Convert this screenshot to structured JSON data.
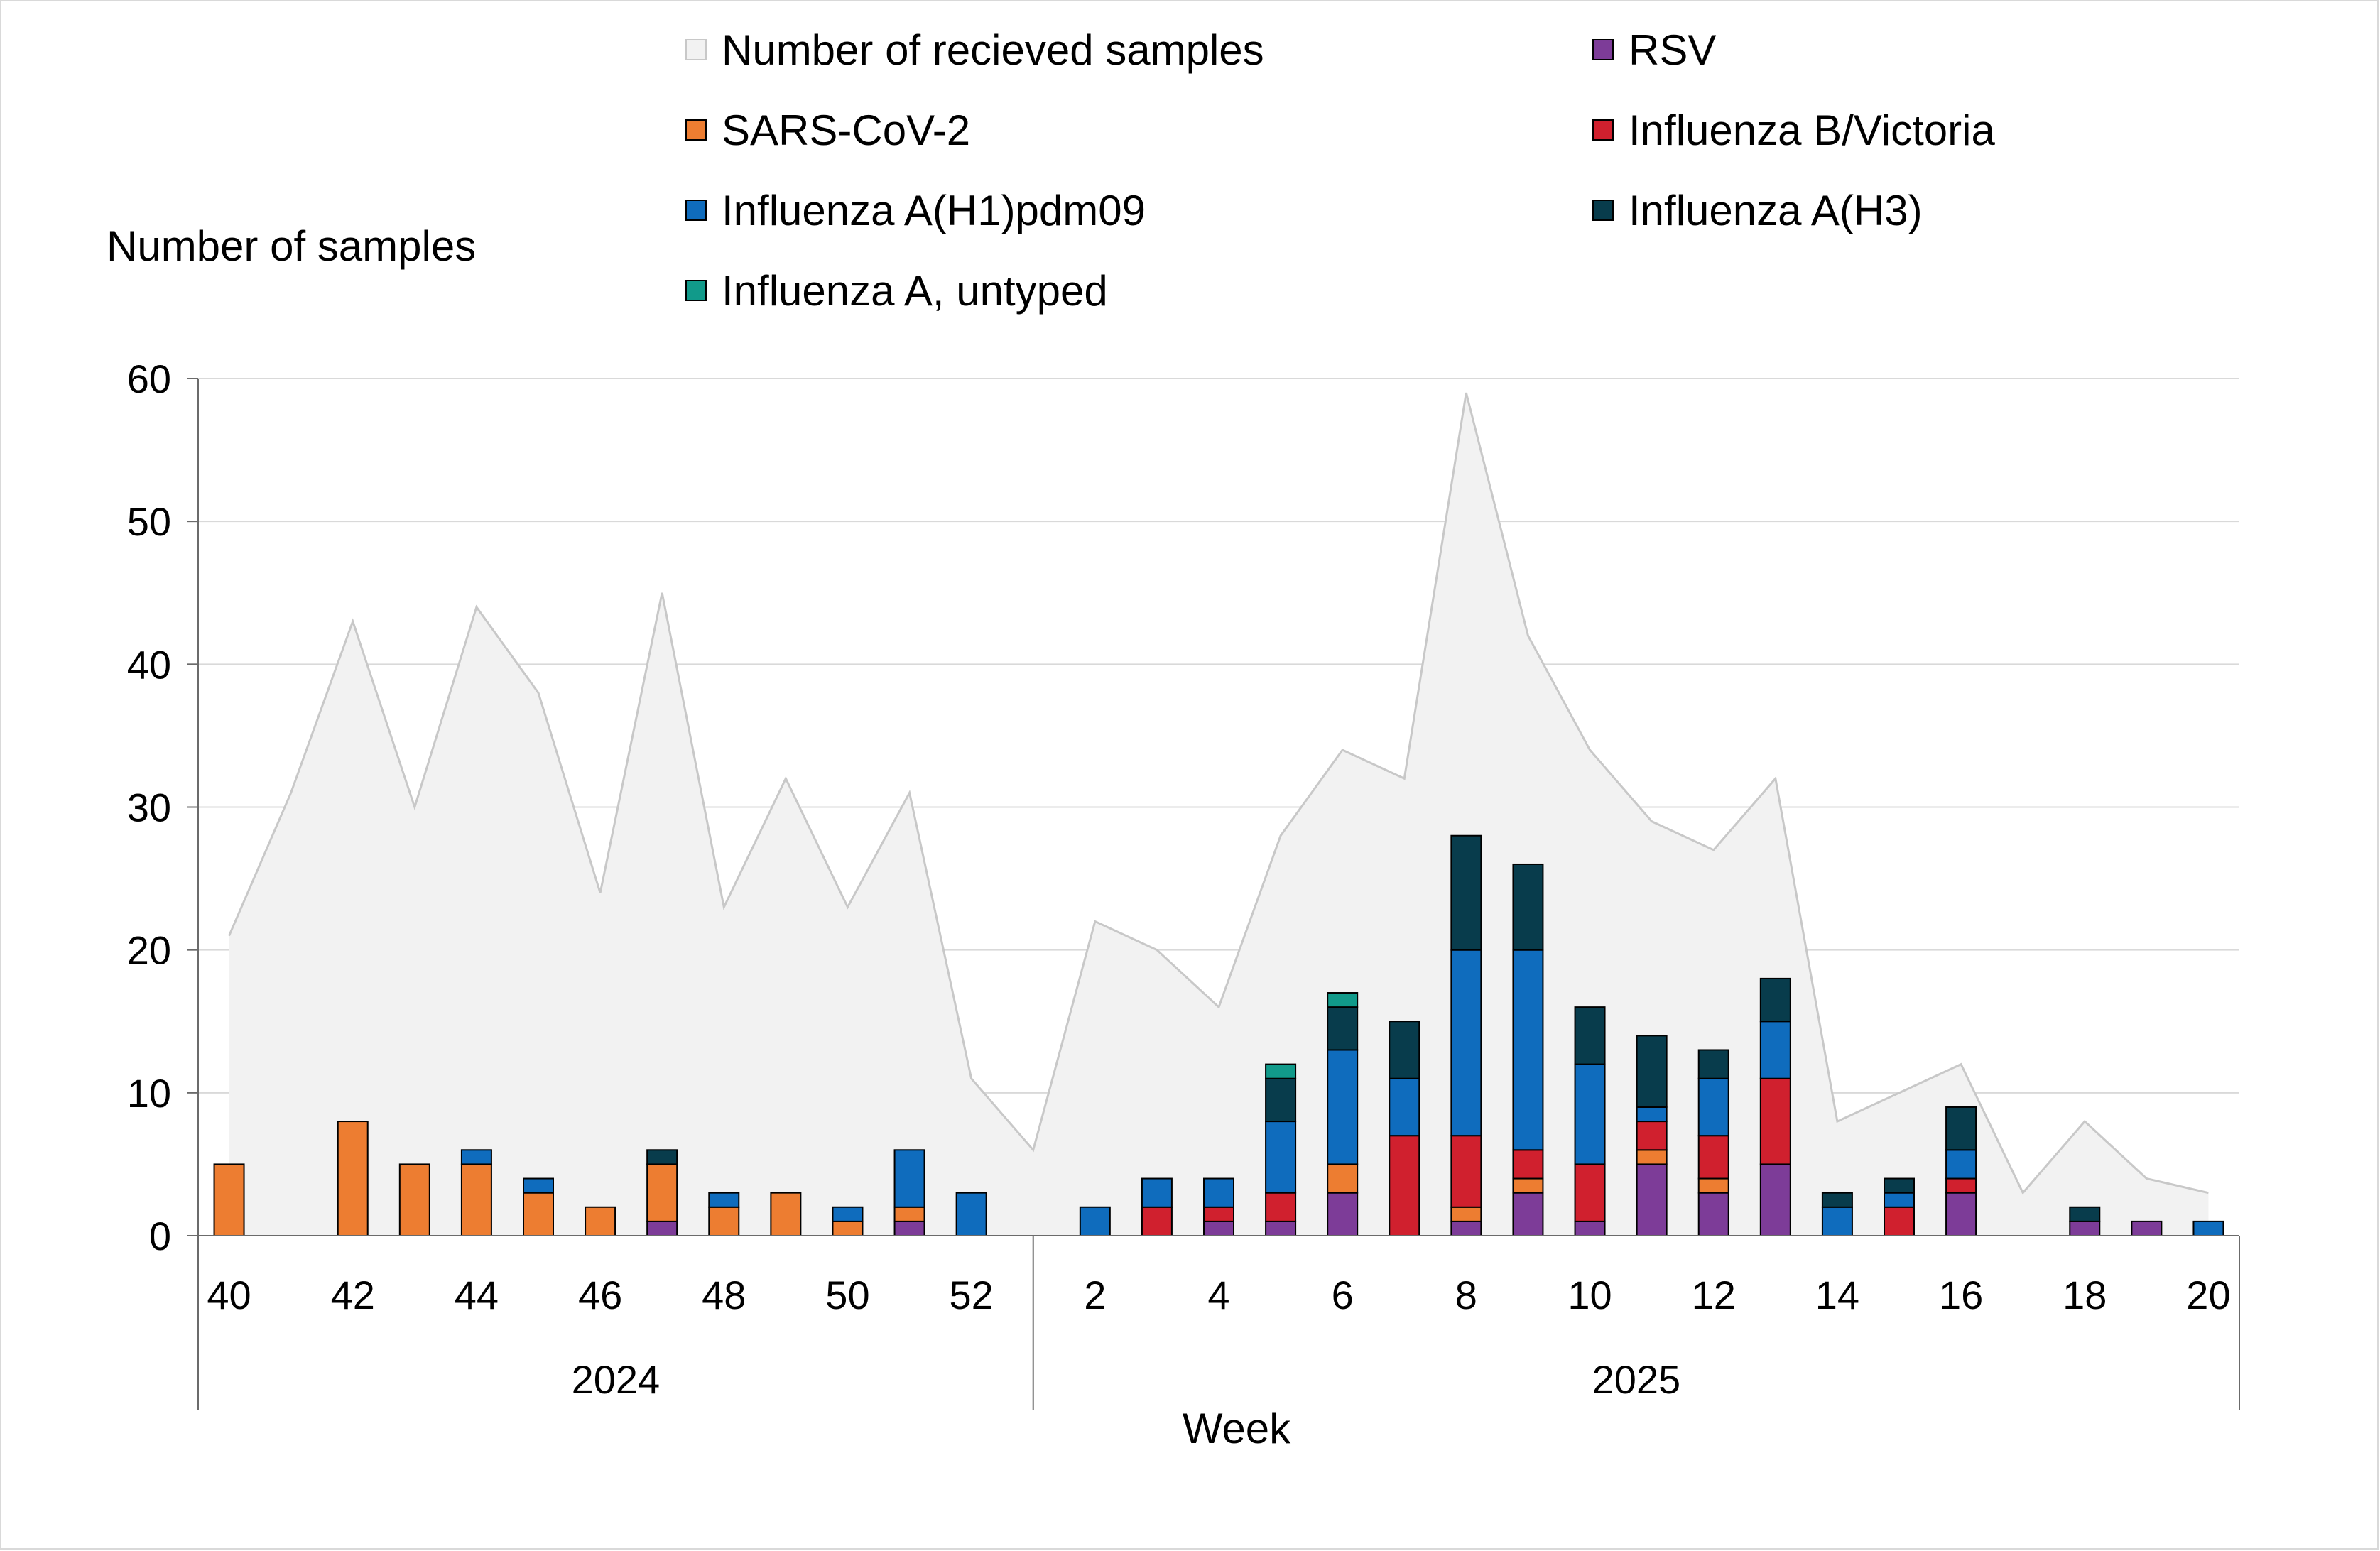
{
  "chart_data": {
    "type": "bar",
    "subtype": "stacked bar with background area",
    "ylabel": "Number of samples",
    "xlabel": "Week",
    "ylim": [
      0,
      60
    ],
    "yticks": [
      0,
      10,
      20,
      30,
      40,
      50,
      60
    ],
    "grid": true,
    "legend_position": "top",
    "weeks": [
      "40",
      "41",
      "42",
      "43",
      "44",
      "45",
      "46",
      "47",
      "48",
      "49",
      "50",
      "51",
      "52",
      "1",
      "2",
      "3",
      "4",
      "5",
      "6",
      "7",
      "8",
      "9",
      "10",
      "11",
      "12",
      "13",
      "14",
      "15",
      "16",
      "17",
      "18",
      "19",
      "20"
    ],
    "tick_labels": [
      "40",
      "42",
      "44",
      "46",
      "48",
      "50",
      "52",
      "2",
      "4",
      "6",
      "8",
      "10",
      "12",
      "14",
      "16",
      "18",
      "20"
    ],
    "years": [
      {
        "label": "2024",
        "start": 0,
        "end": 12
      },
      {
        "label": "2025",
        "start": 13,
        "end": 32
      }
    ],
    "area_series": {
      "name": "Number of recieved samples",
      "color": "#f2f2f2",
      "line_color": "#c8c8c8",
      "values": [
        21,
        31,
        43,
        30,
        44,
        38,
        24,
        45,
        23,
        32,
        23,
        31,
        11,
        6,
        22,
        20,
        16,
        28,
        34,
        32,
        59,
        42,
        34,
        29,
        27,
        32,
        8,
        10,
        12,
        3,
        8,
        4,
        3
      ]
    },
    "series": [
      {
        "name": "RSV",
        "color": "#7d3c98",
        "values": [
          0,
          0,
          0,
          0,
          0,
          0,
          0,
          1,
          0,
          0,
          0,
          1,
          0,
          0,
          0,
          0,
          1,
          1,
          3,
          0,
          1,
          3,
          1,
          5,
          3,
          5,
          0,
          0,
          3,
          0,
          1,
          1,
          0
        ]
      },
      {
        "name": "SARS-CoV-2",
        "color": "#ed7d31",
        "values": [
          5,
          0,
          8,
          5,
          5,
          3,
          2,
          4,
          2,
          3,
          1,
          1,
          0,
          0,
          0,
          0,
          0,
          0,
          2,
          0,
          1,
          1,
          0,
          1,
          1,
          0,
          0,
          0,
          0,
          0,
          0,
          0,
          0
        ]
      },
      {
        "name": "Influenza B/Victoria",
        "color": "#d0202e",
        "values": [
          0,
          0,
          0,
          0,
          0,
          0,
          0,
          0,
          0,
          0,
          0,
          0,
          0,
          0,
          0,
          2,
          1,
          2,
          0,
          7,
          5,
          2,
          4,
          2,
          3,
          6,
          0,
          2,
          1,
          0,
          0,
          0,
          0
        ]
      },
      {
        "name": "Influenza A(H1)pdm09",
        "color": "#0f6cbd",
        "values": [
          0,
          0,
          0,
          0,
          1,
          1,
          0,
          0,
          1,
          0,
          1,
          4,
          3,
          0,
          2,
          2,
          2,
          5,
          8,
          4,
          13,
          14,
          7,
          1,
          4,
          4,
          2,
          1,
          2,
          0,
          0,
          0,
          1
        ]
      },
      {
        "name": "Influenza A(H3)",
        "color": "#083c4c",
        "values": [
          0,
          0,
          0,
          0,
          0,
          0,
          0,
          1,
          0,
          0,
          0,
          0,
          0,
          0,
          0,
          0,
          0,
          3,
          3,
          4,
          8,
          6,
          4,
          5,
          2,
          3,
          1,
          1,
          3,
          0,
          1,
          0,
          0
        ]
      },
      {
        "name": "Influenza A, untyped",
        "color": "#119a8a",
        "values": [
          0,
          0,
          0,
          0,
          0,
          0,
          0,
          0,
          0,
          0,
          0,
          0,
          0,
          0,
          0,
          0,
          0,
          1,
          1,
          0,
          0,
          0,
          0,
          0,
          0,
          0,
          0,
          0,
          0,
          0,
          0,
          0,
          0
        ]
      }
    ],
    "legend": {
      "left_column": [
        "Number of recieved samples",
        "SARS-CoV-2",
        "Influenza A(H1)pdm09",
        "Influenza A, untyped"
      ],
      "right_column": [
        "RSV",
        "Influenza B/Victoria",
        "Influenza A(H3)"
      ]
    }
  }
}
